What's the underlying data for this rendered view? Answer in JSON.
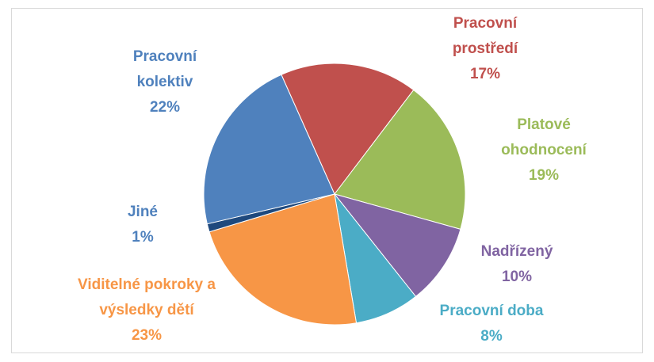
{
  "chart_data": {
    "type": "pie",
    "categories": [
      "Pracovní prostředí",
      "Platové ohodnocení",
      "Nadřízený",
      "Pracovní doba",
      "Viditelné pokroky a výsledky dětí",
      "Jiné",
      "Pracovní kolektiv"
    ],
    "values": [
      17,
      19,
      10,
      8,
      23,
      1,
      22
    ],
    "value_labels": [
      "17%",
      "19%",
      "10%",
      "8%",
      "23%",
      "1%",
      "22%"
    ],
    "colors": [
      "#c0504d",
      "#9bbb59",
      "#8064a2",
      "#4bacc6",
      "#f79646",
      "#1f497d",
      "#4f81bd"
    ],
    "label_colors": [
      "#c0504d",
      "#9bbb59",
      "#8064a2",
      "#4bacc6",
      "#f79646",
      "#4f81bd",
      "#4f81bd"
    ]
  }
}
